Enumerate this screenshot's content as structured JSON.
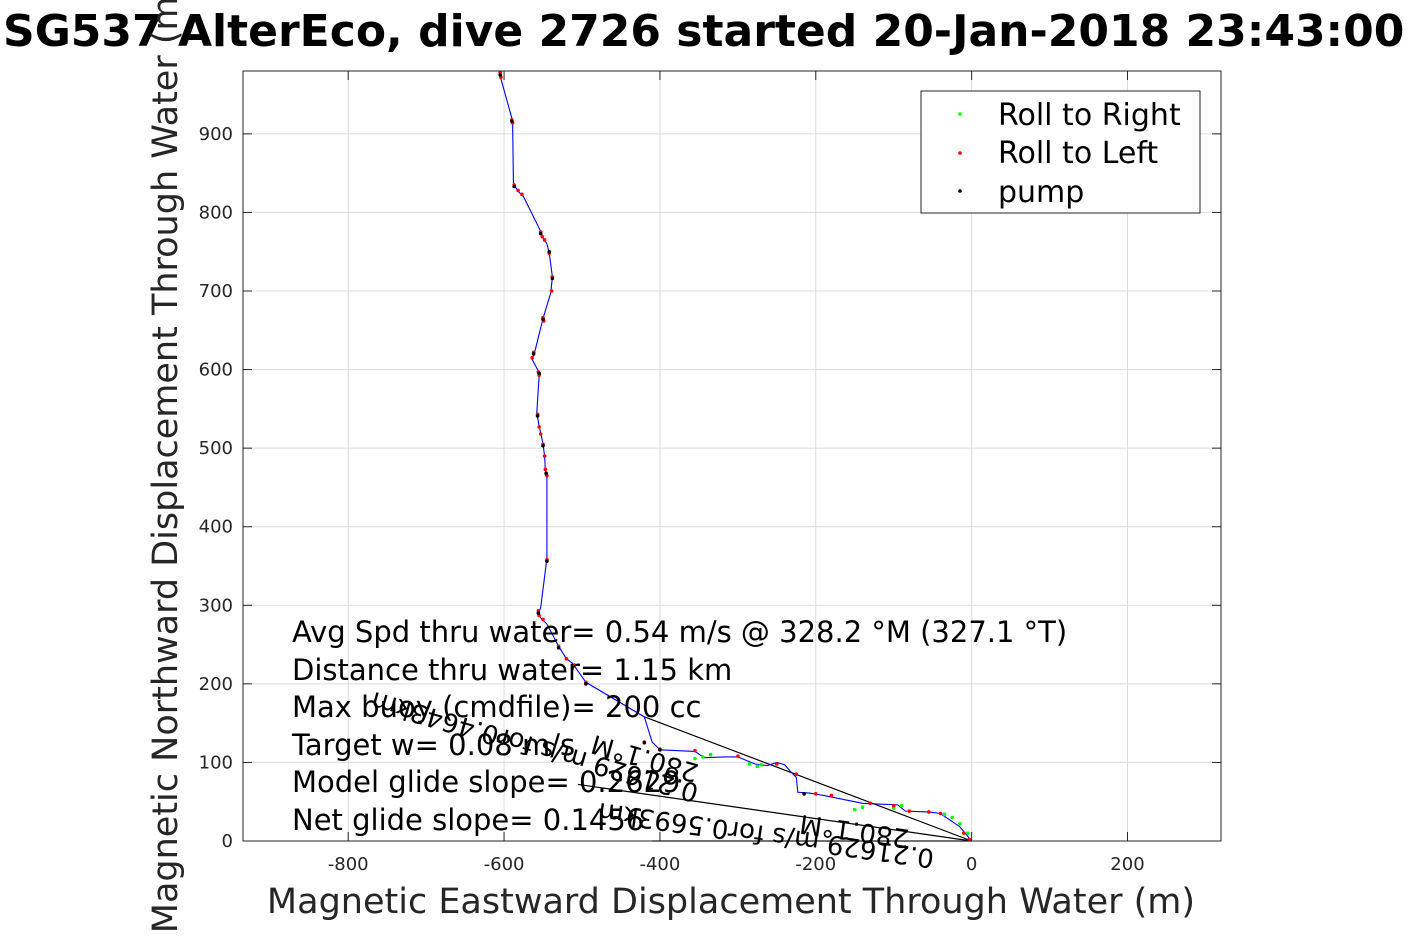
{
  "chart_data": {
    "type": "scatter",
    "title": "SG537 AlterEco, dive 2726 started 20-Jan-2018 23:43:00",
    "xlabel": "Magnetic Eastward Displacement Through Water (m)",
    "ylabel": "Magnetic Northward Displacement Through Water (m)",
    "xlim": [
      -935,
      320
    ],
    "ylim": [
      0,
      980
    ],
    "xticks": [
      -800,
      -600,
      -400,
      -200,
      0,
      200
    ],
    "yticks": [
      0,
      100,
      200,
      300,
      400,
      500,
      600,
      700,
      800,
      900
    ],
    "grid": true,
    "legend_position": "top-right",
    "series": [
      {
        "name": "Roll to Right",
        "color": "#00ff00",
        "points": [
          [
            -5,
            10
          ],
          [
            -15,
            22
          ],
          [
            -25,
            30
          ],
          [
            -35,
            34
          ],
          [
            -90,
            45
          ],
          [
            -100,
            42
          ],
          [
            -140,
            43
          ],
          [
            -150,
            40
          ],
          [
            -270,
            97
          ],
          [
            -275,
            95
          ],
          [
            -285,
            98
          ],
          [
            -335,
            110
          ],
          [
            -345,
            107
          ],
          [
            -355,
            105
          ]
        ]
      },
      {
        "name": "Roll to Left",
        "color": "#ff0000",
        "points": [
          [
            -605,
            978
          ],
          [
            -604,
            972
          ],
          [
            -590,
            918
          ],
          [
            -589,
            914
          ],
          [
            -587,
            835
          ],
          [
            -582,
            828
          ],
          [
            -577,
            823
          ],
          [
            -553,
            775
          ],
          [
            -551,
            769
          ],
          [
            -548,
            765
          ],
          [
            -542,
            748
          ],
          [
            -538,
            718
          ],
          [
            -539,
            700
          ],
          [
            -550,
            666
          ],
          [
            -549,
            662
          ],
          [
            -562,
            622
          ],
          [
            -564,
            615
          ],
          [
            -556,
            597
          ],
          [
            -555,
            593
          ],
          [
            -557,
            543
          ],
          [
            -555,
            527
          ],
          [
            -553,
            518
          ],
          [
            -550,
            505
          ],
          [
            -548,
            490
          ],
          [
            -547,
            473
          ],
          [
            -545,
            465
          ],
          [
            -545,
            358
          ],
          [
            -556,
            293
          ],
          [
            -555,
            287
          ],
          [
            -550,
            282
          ],
          [
            -530,
            248
          ],
          [
            -520,
            232
          ],
          [
            -510,
            224
          ],
          [
            -495,
            202
          ],
          [
            -420,
            126
          ],
          [
            -400,
            117
          ],
          [
            -355,
            115
          ],
          [
            -300,
            108
          ],
          [
            -250,
            98
          ],
          [
            -225,
            85
          ],
          [
            -200,
            60
          ],
          [
            -180,
            58
          ],
          [
            -130,
            48
          ],
          [
            -100,
            45
          ],
          [
            -80,
            38
          ],
          [
            -55,
            37
          ],
          [
            -40,
            35
          ],
          [
            -10,
            10
          ],
          [
            -3,
            2
          ]
        ]
      },
      {
        "name": "pump",
        "color": "#000000",
        "points": [
          [
            -605,
            975
          ],
          [
            -590,
            916
          ],
          [
            -587,
            833
          ],
          [
            -553,
            773
          ],
          [
            -542,
            750
          ],
          [
            -538,
            716
          ],
          [
            -550,
            664
          ],
          [
            -562,
            620
          ],
          [
            -555,
            595
          ],
          [
            -557,
            541
          ],
          [
            -550,
            503
          ],
          [
            -546,
            468
          ],
          [
            -545,
            356
          ],
          [
            -556,
            290
          ],
          [
            -530,
            246
          ],
          [
            -495,
            200
          ],
          [
            -420,
            125
          ],
          [
            -400,
            116
          ],
          [
            -215,
            60
          ]
        ]
      }
    ],
    "track": [
      [
        -605,
        978
      ],
      [
        -604,
        970
      ],
      [
        -590,
        920
      ],
      [
        -589,
        912
      ],
      [
        -588,
        838
      ],
      [
        -583,
        828
      ],
      [
        -575,
        820
      ],
      [
        -553,
        776
      ],
      [
        -550,
        768
      ],
      [
        -545,
        760
      ],
      [
        -542,
        748
      ],
      [
        -538,
        718
      ],
      [
        -540,
        698
      ],
      [
        -550,
        665
      ],
      [
        -560,
        625
      ],
      [
        -564,
        613
      ],
      [
        -556,
        598
      ],
      [
        -555,
        592
      ],
      [
        -558,
        545
      ],
      [
        -555,
        528
      ],
      [
        -552,
        515
      ],
      [
        -550,
        505
      ],
      [
        -548,
        490
      ],
      [
        -547,
        472
      ],
      [
        -545,
        465
      ],
      [
        -545,
        360
      ],
      [
        -553,
        297
      ],
      [
        -556,
        290
      ],
      [
        -553,
        284
      ],
      [
        -545,
        276
      ],
      [
        -530,
        248
      ],
      [
        -520,
        232
      ],
      [
        -512,
        226
      ],
      [
        -495,
        202
      ],
      [
        -420,
        158
      ],
      [
        -410,
        126
      ],
      [
        -400,
        116
      ],
      [
        -355,
        114
      ],
      [
        -343,
        106
      ],
      [
        -318,
        107
      ],
      [
        -300,
        107
      ],
      [
        -278,
        98
      ],
      [
        -262,
        96
      ],
      [
        -250,
        100
      ],
      [
        -240,
        97
      ],
      [
        -232,
        88
      ],
      [
        -225,
        81
      ],
      [
        -223,
        62
      ],
      [
        -208,
        61
      ],
      [
        -202,
        60
      ],
      [
        -190,
        58
      ],
      [
        -140,
        48
      ],
      [
        -95,
        46
      ],
      [
        -85,
        38
      ],
      [
        -55,
        37
      ],
      [
        -40,
        35
      ],
      [
        -15,
        18
      ],
      [
        0,
        0
      ]
    ],
    "reference_lines": [
      {
        "from": [
          -420,
          158
        ],
        "to": [
          0,
          0
        ]
      },
      {
        "from": [
          -505,
          72
        ],
        "to": [
          0,
          0
        ]
      },
      {
        "from": [
          -410,
          0
        ],
        "to": [
          0,
          0
        ]
      }
    ],
    "annotations": {
      "lines": [
        "Avg Spd thru water=  0.54 m/s @ 328.2 °M (327.1 °T)",
        "Distance thru water=  1.15 km",
        "Max buoy (cmdfile)= 200 cc",
        "Target w= 0.08 m/s",
        "Model glide slope= 0.2629",
        "Net glide slope= 0.1456"
      ],
      "rotated_1": "0.21629 m/s for0.5693km",
      "rotated_2": "280.1°M",
      "rotated_3": "0.21629 m/s for0.4643km",
      "rotated_4": "280.1°M"
    }
  }
}
